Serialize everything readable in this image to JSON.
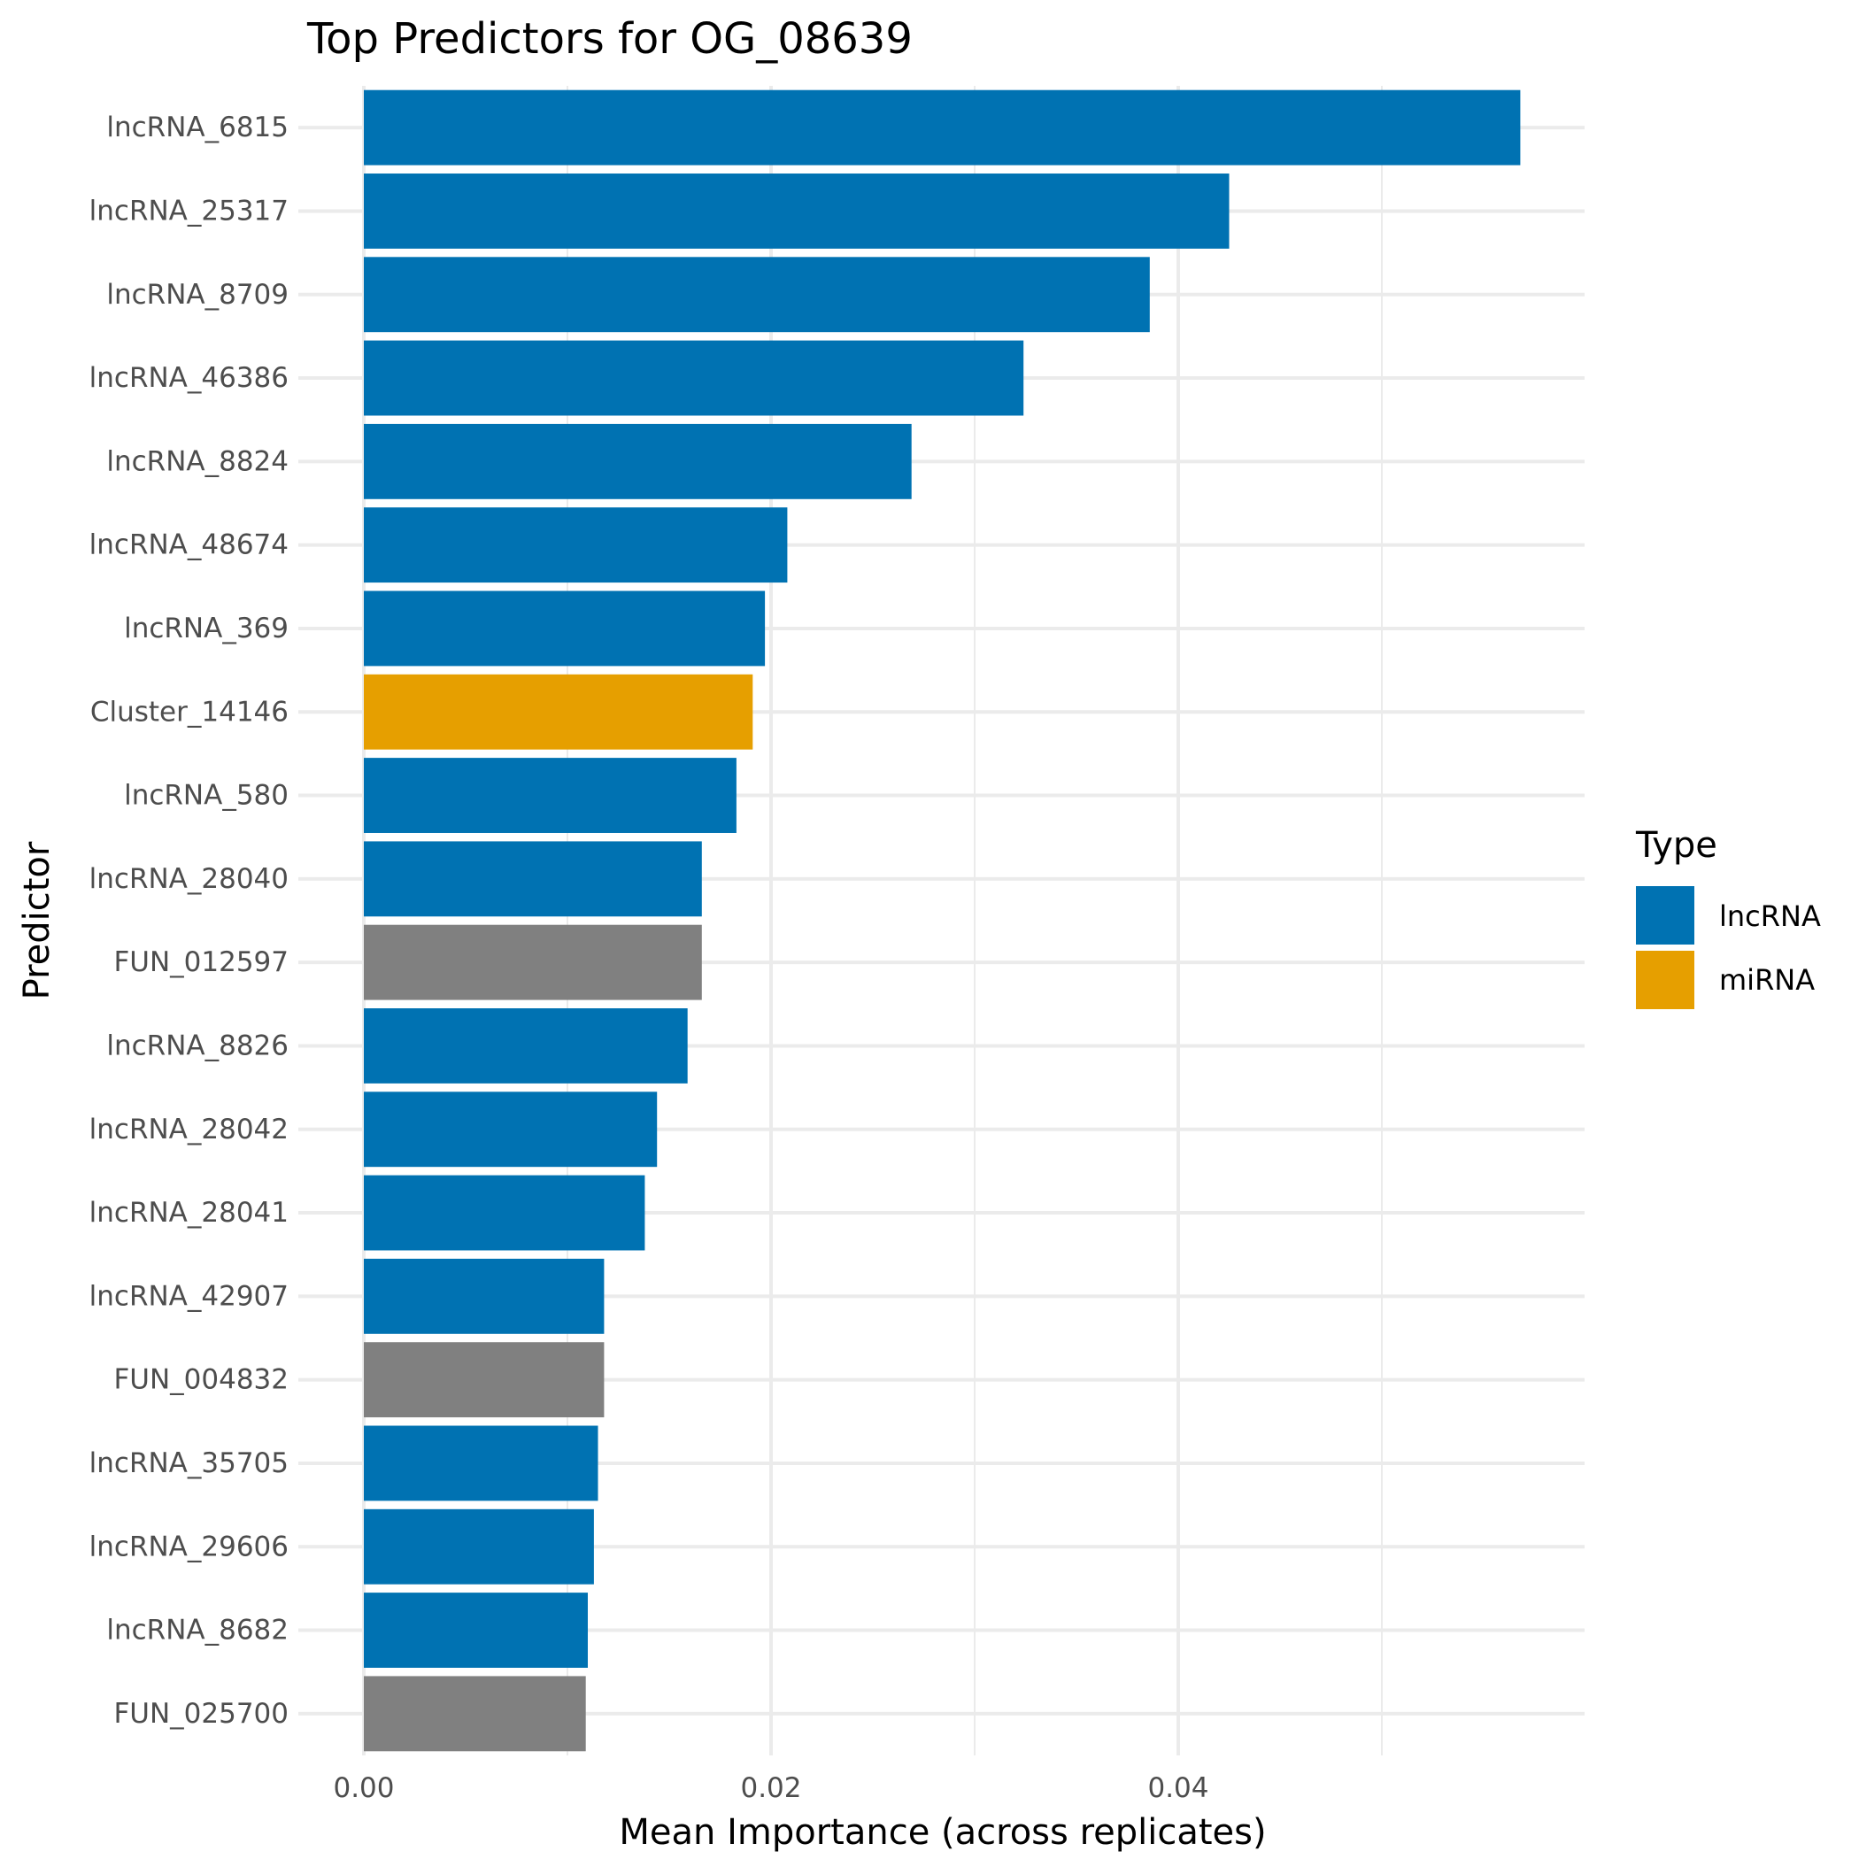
{
  "chart_data": {
    "type": "bar",
    "orientation": "horizontal",
    "title": "Top Predictors for OG_08639",
    "xlabel": "Mean Importance (across replicates)",
    "ylabel": "Predictor",
    "xlim": [
      0,
      0.0597
    ],
    "x_ticks": [
      0,
      0.02,
      0.04
    ],
    "x_tick_labels": [
      "0.00",
      "0.02",
      "0.04"
    ],
    "grid": true,
    "legend": {
      "title": "Type",
      "placement": "right",
      "entries": [
        {
          "label": "lncRNA",
          "color": "#0072B2"
        },
        {
          "label": "miRNA",
          "color": "#E69F00"
        }
      ]
    },
    "type_colors": {
      "lncRNA": "#0072B2",
      "miRNA": "#E69F00",
      "other": "#808080"
    },
    "bars": [
      {
        "label": "lncRNA_6815",
        "value": 0.0568,
        "type": "lncRNA"
      },
      {
        "label": "lncRNA_25317",
        "value": 0.0425,
        "type": "lncRNA"
      },
      {
        "label": "lncRNA_8709",
        "value": 0.0386,
        "type": "lncRNA"
      },
      {
        "label": "lncRNA_46386",
        "value": 0.0324,
        "type": "lncRNA"
      },
      {
        "label": "lncRNA_8824",
        "value": 0.0269,
        "type": "lncRNA"
      },
      {
        "label": "lncRNA_48674",
        "value": 0.0208,
        "type": "lncRNA"
      },
      {
        "label": "lncRNA_369",
        "value": 0.0197,
        "type": "lncRNA"
      },
      {
        "label": "Cluster_14146",
        "value": 0.0191,
        "type": "miRNA"
      },
      {
        "label": "lncRNA_580",
        "value": 0.0183,
        "type": "lncRNA"
      },
      {
        "label": "lncRNA_28040",
        "value": 0.0166,
        "type": "lncRNA"
      },
      {
        "label": "FUN_012597",
        "value": 0.0166,
        "type": "other"
      },
      {
        "label": "lncRNA_8826",
        "value": 0.0159,
        "type": "lncRNA"
      },
      {
        "label": "lncRNA_28042",
        "value": 0.0144,
        "type": "lncRNA"
      },
      {
        "label": "lncRNA_28041",
        "value": 0.0138,
        "type": "lncRNA"
      },
      {
        "label": "lncRNA_42907",
        "value": 0.0118,
        "type": "lncRNA"
      },
      {
        "label": "FUN_004832",
        "value": 0.0118,
        "type": "other"
      },
      {
        "label": "lncRNA_35705",
        "value": 0.0115,
        "type": "lncRNA"
      },
      {
        "label": "lncRNA_29606",
        "value": 0.0113,
        "type": "lncRNA"
      },
      {
        "label": "lncRNA_8682",
        "value": 0.011,
        "type": "lncRNA"
      },
      {
        "label": "FUN_025700",
        "value": 0.0109,
        "type": "other"
      }
    ]
  }
}
